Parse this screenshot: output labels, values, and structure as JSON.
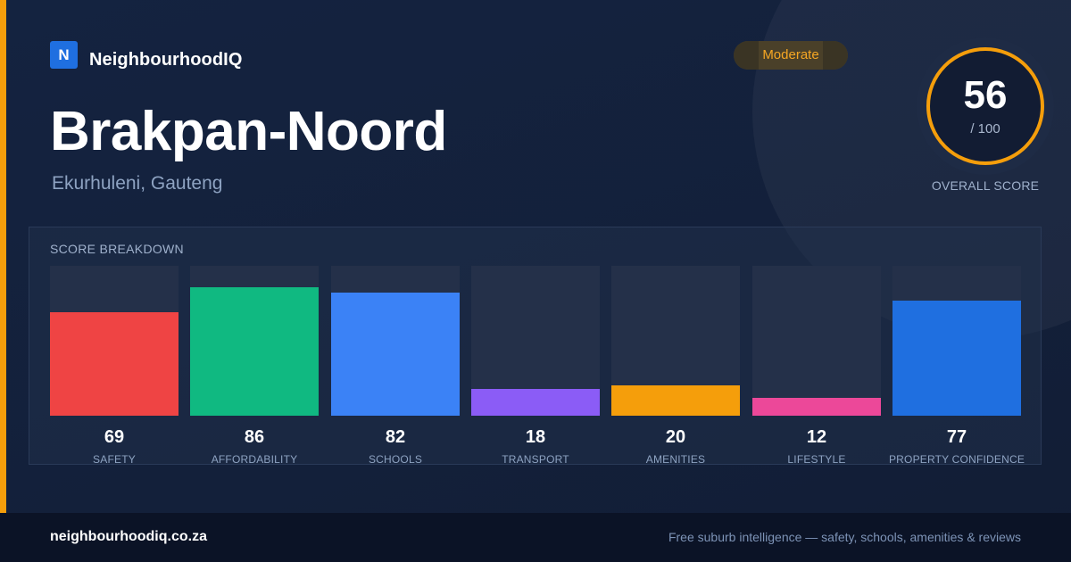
{
  "brand": {
    "logo_letter": "N",
    "name": "NeighbourhoodIQ"
  },
  "suburb": {
    "name": "Brakpan-Noord",
    "location": "Ekurhuleni, Gauteng"
  },
  "rating_badge": {
    "label": "Moderate",
    "color": "#f5a623"
  },
  "overall": {
    "score": "56",
    "max": "/ 100",
    "caption": "OVERALL SCORE",
    "ring_color": "#f59e0b"
  },
  "breakdown": {
    "title": "SCORE BREAKDOWN",
    "items": [
      {
        "label": "SAFETY",
        "value": 69,
        "color": "#ef4444"
      },
      {
        "label": "AFFORDABILITY",
        "value": 86,
        "color": "#10b981"
      },
      {
        "label": "SCHOOLS",
        "value": 82,
        "color": "#3b82f6"
      },
      {
        "label": "TRANSPORT",
        "value": 18,
        "color": "#8b5cf6"
      },
      {
        "label": "AMENITIES",
        "value": 20,
        "color": "#f59e0b"
      },
      {
        "label": "LIFESTYLE",
        "value": 12,
        "color": "#ec4899"
      },
      {
        "label": "PROPERTY CONFIDENCE",
        "value": 77,
        "color": "#1f6fe0"
      }
    ]
  },
  "footer": {
    "url": "neighbourhoodiq.co.za",
    "tagline": "Free suburb intelligence — safety, schools, amenities & reviews"
  }
}
